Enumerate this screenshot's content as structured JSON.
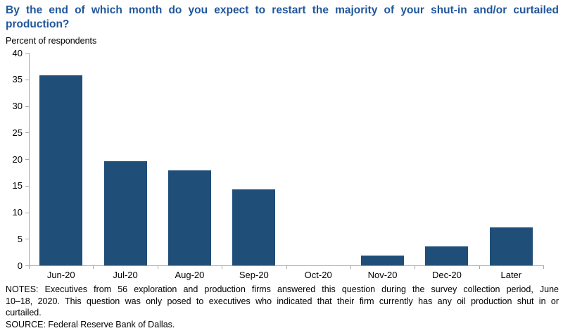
{
  "page": {
    "title": "By the end of which month do you expect to restart the majority of your shut-in and/or curtailed production?",
    "units_label": "Percent of respondents",
    "notes_line1": "NOTES: Executives from 56 exploration and production firms answered this question during the survey collection period, June",
    "notes_line2": "10–18, 2020. This question was only posed to executives who indicated that their firm currently has any oil production shut in or",
    "notes_line3": "curtailed.",
    "source": "SOURCE: Federal Reserve Bank of Dallas."
  },
  "colors": {
    "bar": "#1F4E79",
    "title_text": "#1F569B",
    "axis": "#A6A6A6",
    "text": "#000000"
  },
  "chart_data": {
    "type": "bar",
    "categories": [
      "Jun-20",
      "Jul-20",
      "Aug-20",
      "Sep-20",
      "Oct-20",
      "Nov-20",
      "Dec-20",
      "Later"
    ],
    "values": [
      35.7,
      19.6,
      17.9,
      14.3,
      0,
      1.8,
      3.6,
      7.1
    ],
    "title": "By the end of which month do you expect to restart the majority of your shut-in and/or curtailed production?",
    "xlabel": "",
    "ylabel": "Percent of respondents",
    "ylim": [
      0,
      40
    ],
    "ytick_step": 5,
    "grid": false,
    "legend": null,
    "bar_color": "#1F4E79"
  }
}
